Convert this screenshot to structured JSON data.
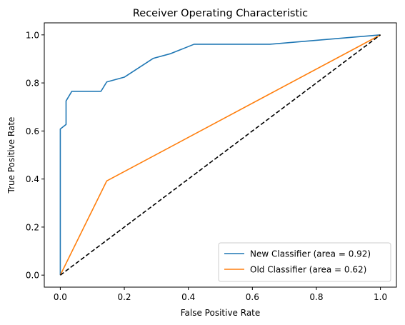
{
  "chart_data": {
    "type": "line",
    "title": "Receiver Operating Characteristic",
    "xlabel": "False Positive Rate",
    "ylabel": "True Positive Rate",
    "xlim": [
      -0.05,
      1.05
    ],
    "ylim": [
      -0.05,
      1.05
    ],
    "xticks": [
      0.0,
      0.2,
      0.4,
      0.6,
      0.8,
      1.0
    ],
    "yticks": [
      0.0,
      0.2,
      0.4,
      0.6,
      0.8,
      1.0
    ],
    "xtick_labels": [
      "0.0",
      "0.2",
      "0.4",
      "0.6",
      "0.8",
      "1.0"
    ],
    "ytick_labels": [
      "0.0",
      "0.2",
      "0.4",
      "0.6",
      "0.8",
      "1.0"
    ],
    "grid": false,
    "legend_position": "lower-right",
    "series": [
      {
        "name": "New Classifier (area = 0.92)",
        "color": "#1f77b4",
        "style": "solid",
        "x": [
          0.0,
          0.0,
          0.018,
          0.018,
          0.036,
          0.127,
          0.145,
          0.2,
          0.29,
          0.345,
          0.418,
          0.655,
          1.0
        ],
        "y": [
          0.0,
          0.608,
          0.627,
          0.725,
          0.765,
          0.765,
          0.804,
          0.824,
          0.902,
          0.922,
          0.961,
          0.961,
          1.0
        ]
      },
      {
        "name": "Old Classifier (area = 0.62)",
        "color": "#ff7f0e",
        "style": "solid",
        "x": [
          0.0,
          0.145,
          1.0
        ],
        "y": [
          0.0,
          0.392,
          1.0
        ]
      },
      {
        "name": "",
        "color": "#000000",
        "style": "dashed",
        "x": [
          0.0,
          1.0
        ],
        "y": [
          0.0,
          1.0
        ]
      }
    ]
  }
}
